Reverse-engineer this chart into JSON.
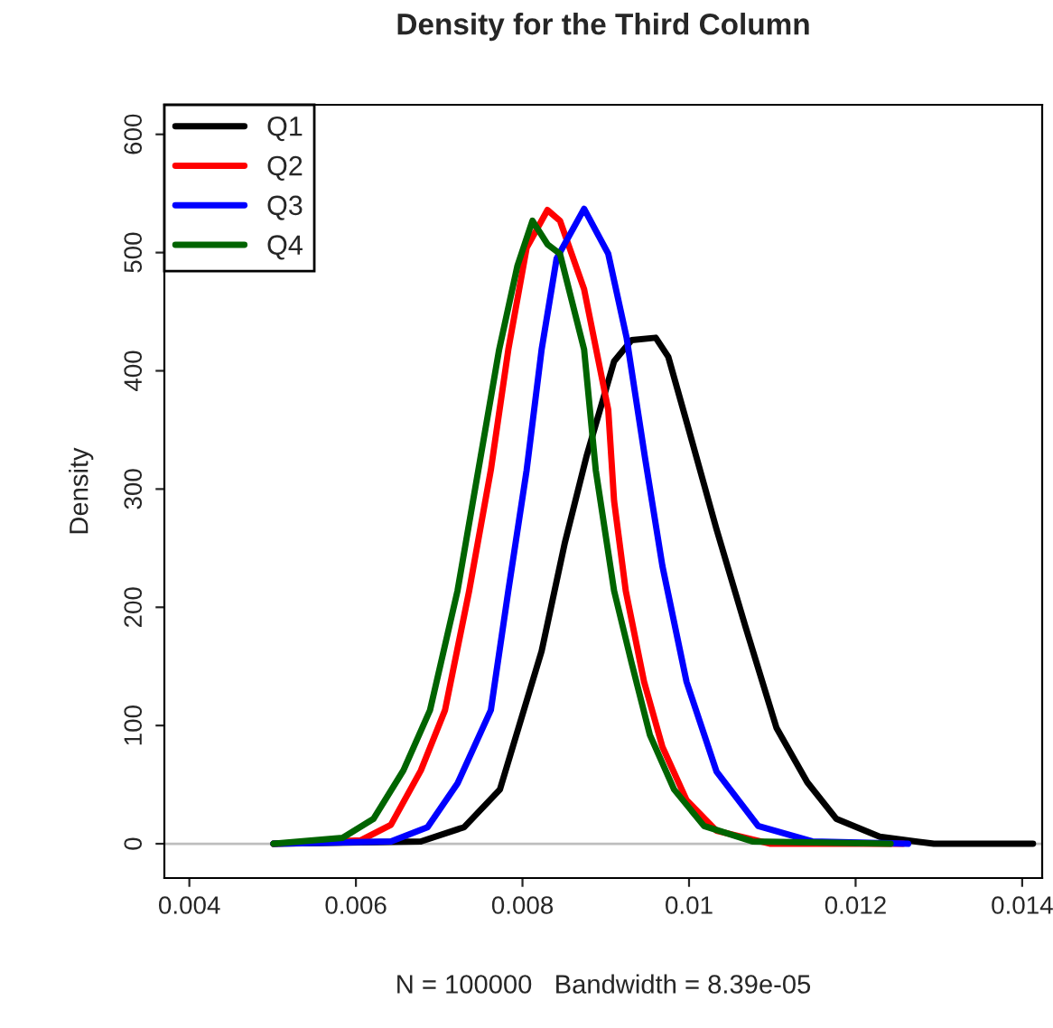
{
  "chart_data": {
    "type": "line",
    "title": "Density for the Third Column",
    "xlabel": "N = 100000   Bandwidth = 8.39e-05",
    "ylabel": "Density",
    "xlim": [
      0.0037,
      0.01424
    ],
    "ylim": [
      -29,
      625
    ],
    "xticks": [
      0.004,
      0.006,
      0.008,
      0.01,
      0.012,
      0.014
    ],
    "yticks": [
      0,
      100,
      200,
      300,
      400,
      500,
      600
    ],
    "grid": false,
    "legend": "top left",
    "line_style": "solid",
    "marker": "none",
    "ref_lines": [
      {
        "axis": "y",
        "value": 0,
        "color": "#bebebe"
      }
    ],
    "series": [
      {
        "name": "Q1",
        "color": "#000000",
        "x": [
          0.00501,
          0.00678,
          0.0073,
          0.00773,
          0.00823,
          0.00851,
          0.00877,
          0.0091,
          0.00931,
          0.0096,
          0.00975,
          0.00997,
          0.01033,
          0.01068,
          0.01105,
          0.01142,
          0.01177,
          0.01229,
          0.01294,
          0.01413
        ],
        "values": [
          0,
          2,
          14,
          46,
          163,
          255,
          328,
          408,
          426,
          428,
          412,
          357,
          266,
          183,
          98,
          52,
          21,
          6,
          0,
          0
        ]
      },
      {
        "name": "Q2",
        "color": "#ff0000",
        "x": [
          0.00501,
          0.00606,
          0.00642,
          0.00678,
          0.00707,
          0.00736,
          0.00762,
          0.00783,
          0.00805,
          0.0083,
          0.00845,
          0.00874,
          0.00903,
          0.0091,
          0.00924,
          0.00946,
          0.00968,
          0.00997,
          0.01033,
          0.01098,
          0.01257
        ],
        "values": [
          0,
          3,
          16,
          62,
          113,
          214,
          316,
          418,
          504,
          536,
          527,
          469,
          367,
          290,
          214,
          137,
          82,
          37,
          11,
          0,
          0
        ]
      },
      {
        "name": "Q3",
        "color": "#0000ff",
        "x": [
          0.00501,
          0.00642,
          0.00686,
          0.00722,
          0.00762,
          0.00783,
          0.00805,
          0.00823,
          0.00841,
          0.00874,
          0.00903,
          0.00925,
          0.00947,
          0.00968,
          0.00997,
          0.01033,
          0.01083,
          0.01148,
          0.01263
        ],
        "values": [
          0,
          2,
          14,
          51,
          113,
          214,
          316,
          418,
          495,
          537,
          499,
          428,
          327,
          235,
          137,
          61,
          15,
          2,
          0
        ]
      },
      {
        "name": "Q4",
        "color": "#006400",
        "x": [
          0.00501,
          0.00584,
          0.00621,
          0.00657,
          0.00689,
          0.00722,
          0.00747,
          0.00772,
          0.00794,
          0.00812,
          0.0083,
          0.00845,
          0.00874,
          0.00888,
          0.0091,
          0.00931,
          0.00953,
          0.00982,
          0.01018,
          0.01076,
          0.01242
        ],
        "values": [
          0,
          5,
          21,
          62,
          113,
          214,
          316,
          418,
          489,
          527,
          507,
          499,
          418,
          316,
          214,
          153,
          92,
          46,
          15,
          2,
          0
        ]
      }
    ]
  }
}
